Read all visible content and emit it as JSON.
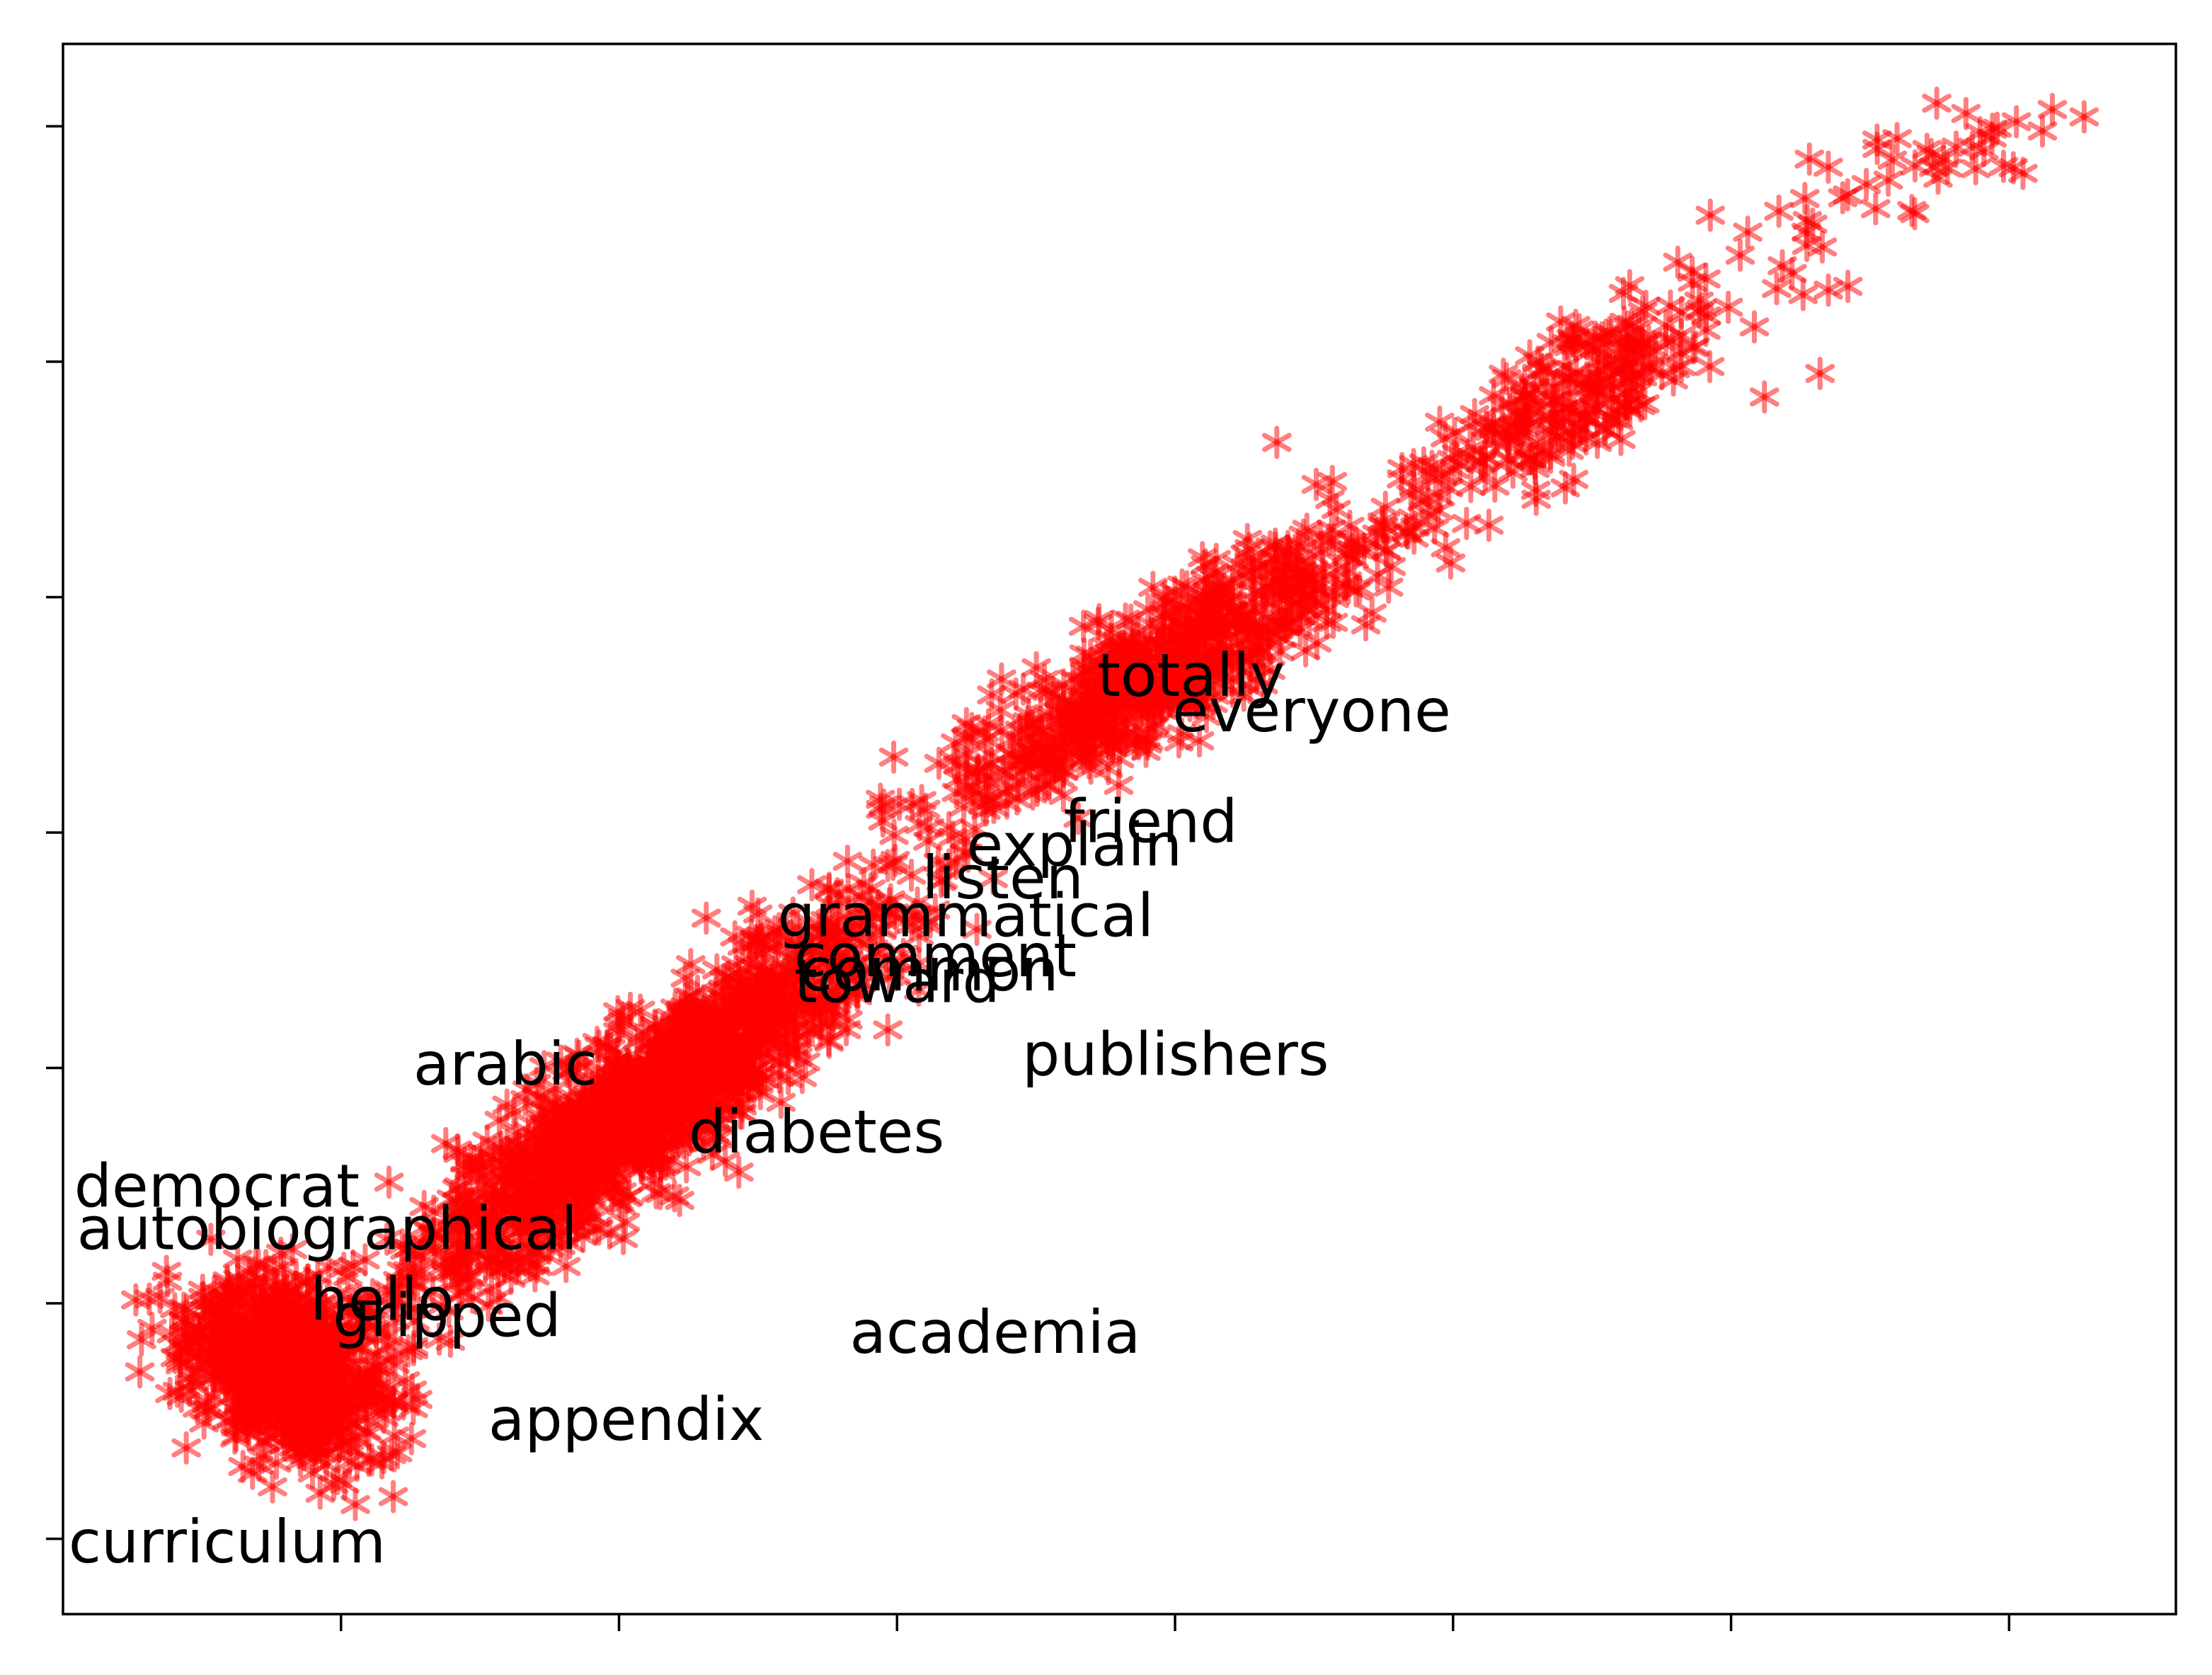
{
  "chart_data": {
    "type": "scatter",
    "title": "",
    "xlabel": "",
    "ylabel": "",
    "xlim": [
      -1.0,
      6.6
    ],
    "ylim": [
      -0.32,
      6.35
    ],
    "x_ticks": [
      0,
      1,
      2,
      3,
      4,
      5,
      6
    ],
    "y_ticks": [
      0,
      1,
      2,
      3,
      4,
      5,
      6
    ],
    "x_tick_labels_shown": false,
    "y_tick_labels_shown": false,
    "grid": false,
    "legend": "none",
    "marker": "asterisk",
    "marker_color": "#ff0000",
    "marker_alpha": 0.5,
    "clusters": [
      {
        "center": [
          -0.2,
          0.72
        ],
        "spread": [
          0.3,
          0.4
        ],
        "rotation_deg": 40,
        "count": 900
      },
      {
        "center": [
          1.1,
          1.85
        ],
        "spread": [
          1.15,
          0.26
        ],
        "rotation_deg": 43,
        "count": 1500
      },
      {
        "center": [
          2.95,
          3.7
        ],
        "spread": [
          0.95,
          0.24
        ],
        "rotation_deg": 37,
        "count": 700
      },
      {
        "center": [
          4.4,
          4.8
        ],
        "spread": [
          0.7,
          0.25
        ],
        "rotation_deg": 37,
        "count": 250
      },
      {
        "center": [
          5.6,
          5.8
        ],
        "spread": [
          0.55,
          0.2
        ],
        "rotation_deg": 30,
        "count": 40
      }
    ],
    "outliers": [
      [
        4.86,
        5.38
      ],
      [
        5.06,
        5.55
      ],
      [
        5.27,
        5.55
      ],
      [
        5.52,
        5.65
      ],
      [
        5.98,
        5.83
      ],
      [
        6.12,
        5.98
      ],
      [
        6.27,
        6.04
      ],
      [
        5.42,
        5.32
      ],
      [
        5.72,
        5.88
      ],
      [
        5.88,
        5.82
      ],
      [
        4.68,
        5.08
      ],
      [
        5.12,
        4.85
      ],
      [
        5.32,
        4.95
      ],
      [
        6.05,
        5.8
      ]
    ],
    "labels": [
      {
        "text": "totally",
        "x": 2.72,
        "y": 3.58
      },
      {
        "text": "everyone",
        "x": 2.99,
        "y": 3.43
      },
      {
        "text": "friend",
        "x": 2.6,
        "y": 2.96
      },
      {
        "text": "explain",
        "x": 2.25,
        "y": 2.86
      },
      {
        "text": "listen",
        "x": 2.09,
        "y": 2.72
      },
      {
        "text": "grammatical",
        "x": 1.57,
        "y": 2.56
      },
      {
        "text": "comment",
        "x": 1.63,
        "y": 2.39
      },
      {
        "text": "common",
        "x": 1.65,
        "y": 2.33
      },
      {
        "text": "toward",
        "x": 1.63,
        "y": 2.28
      },
      {
        "text": "publishers",
        "x": 2.45,
        "y": 1.97
      },
      {
        "text": "arabic",
        "x": 0.26,
        "y": 1.93
      },
      {
        "text": "diabetes",
        "x": 1.25,
        "y": 1.64
      },
      {
        "text": "democrat",
        "x": -0.96,
        "y": 1.41
      },
      {
        "text": "autobiographical",
        "x": -0.95,
        "y": 1.23
      },
      {
        "text": "hello",
        "x": -0.11,
        "y": 0.93
      },
      {
        "text": "gripped",
        "x": -0.03,
        "y": 0.86
      },
      {
        "text": "academia",
        "x": 1.83,
        "y": 0.79
      },
      {
        "text": "appendix",
        "x": 0.53,
        "y": 0.42
      },
      {
        "text": "curriculum",
        "x": -0.98,
        "y": -0.1
      }
    ]
  }
}
